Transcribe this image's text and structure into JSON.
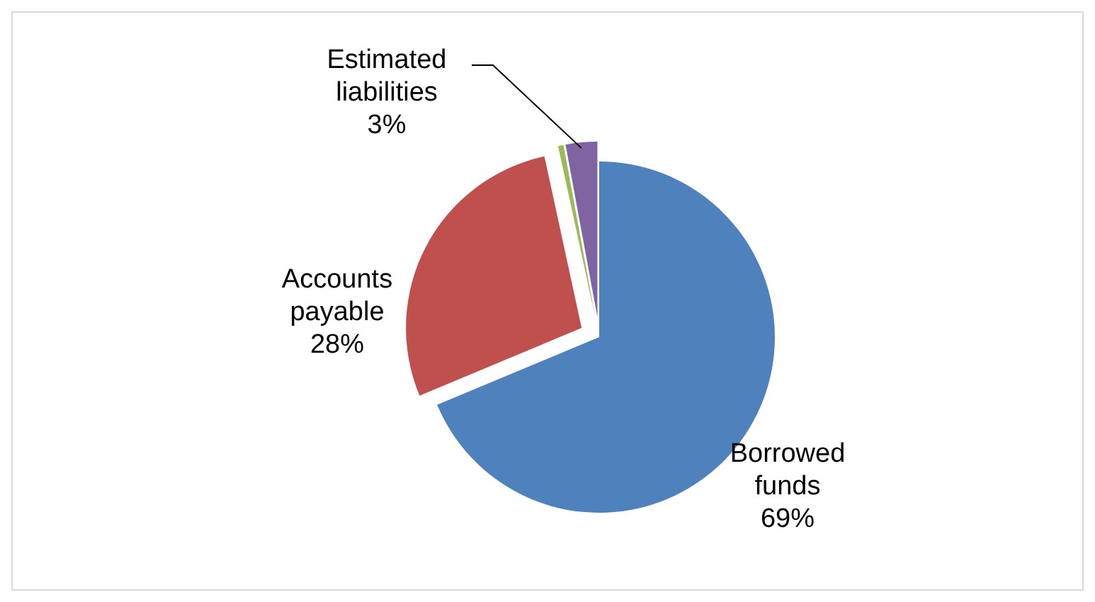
{
  "chart_data": {
    "type": "pie",
    "categories": [
      "Borrowed funds",
      "Accounts payable",
      null,
      "Estimated liabilities"
    ],
    "values": [
      68.7,
      27.9,
      0.5,
      2.9
    ],
    "value_labels": [
      "69%",
      "28%",
      null,
      "3%"
    ],
    "colors": [
      "#4f81bd",
      "#c0504d",
      "#9bbb59",
      "#8064a2"
    ]
  }
}
